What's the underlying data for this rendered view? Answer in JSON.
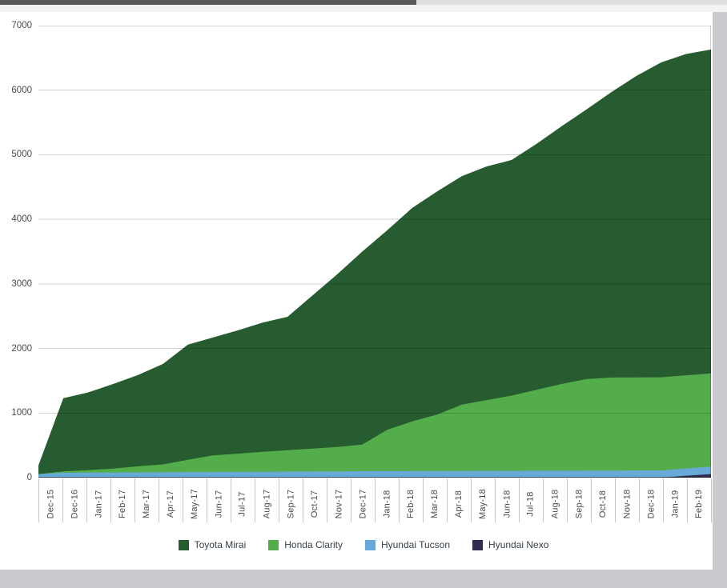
{
  "page": {
    "background": "#ffffff",
    "chrome": {
      "top_edge_dark": "#5a5a5a",
      "top_edge_light": "#e0e0e0",
      "top_band": "#f3f3f3",
      "side_strip": "#c9cbce"
    }
  },
  "chart_data": {
    "type": "area",
    "stacked": true,
    "title": "",
    "xlabel": "",
    "ylabel": "",
    "grid": true,
    "categories": [
      "Dec-15",
      "Dec-16",
      "Jan-17",
      "Feb-17",
      "Mar-17",
      "Apr-17",
      "May-17",
      "Jun-17",
      "Jul-17",
      "Aug-17",
      "Sep-17",
      "Oct-17",
      "Nov-17",
      "Dec-17",
      "Jan-18",
      "Feb-18",
      "Mar-18",
      "Apr-18",
      "May-18",
      "Jun-18",
      "Jul-18",
      "Aug-18",
      "Sep-18",
      "Oct-18",
      "Nov-18",
      "Dec-18",
      "Jan-19",
      "Feb-19"
    ],
    "series": [
      {
        "name": "Toyota Mirai",
        "color": "#265c30",
        "values": [
          135,
          1135,
          1205,
          1310,
          1415,
          1555,
          1785,
          1825,
          1910,
          2000,
          2065,
          2370,
          2675,
          2990,
          3090,
          3305,
          3455,
          3540,
          3620,
          3650,
          3810,
          3990,
          4175,
          4420,
          4668,
          4876,
          4975,
          5017
        ]
      },
      {
        "name": "Honda Clarity",
        "color": "#54ad4b",
        "values": [
          0,
          20,
          38,
          61,
          94,
          122,
          190,
          258,
          281,
          309,
          332,
          355,
          378,
          411,
          640,
          769,
          873,
          1027,
          1096,
          1165,
          1254,
          1343,
          1417,
          1441,
          1442,
          1443,
          1443,
          1445
        ]
      },
      {
        "name": "Hyundai Tucson",
        "color": "#68a9d8",
        "values": [
          55,
          75,
          77,
          79,
          81,
          83,
          85,
          87,
          89,
          91,
          93,
          95,
          97,
          99,
          100,
          101,
          102,
          103,
          104,
          105,
          106,
          107,
          108,
          109,
          110,
          111,
          112,
          113
        ]
      },
      {
        "name": "Hyundai Nexo",
        "color": "#312d50",
        "values": [
          0,
          0,
          0,
          0,
          0,
          0,
          0,
          0,
          0,
          0,
          0,
          0,
          0,
          0,
          0,
          0,
          0,
          0,
          0,
          0,
          0,
          0,
          0,
          0,
          0,
          0,
          30,
          55
        ]
      }
    ],
    "stack_order_bottom_to_top": [
      "Hyundai Nexo",
      "Hyundai Tucson",
      "Honda Clarity",
      "Toyota Mirai"
    ],
    "y_axis": {
      "min": 0,
      "max": 7000,
      "step": 1000,
      "ticks": [
        "0",
        "1000",
        "2000",
        "3000",
        "4000",
        "5000",
        "6000",
        "7000"
      ]
    },
    "legend": {
      "position": "bottom",
      "items": [
        "Toyota Mirai",
        "Honda Clarity",
        "Hyundai Tucson",
        "Hyundai Nexo"
      ]
    },
    "style": {
      "gridline_color": "rgba(0,0,0,0.18)",
      "top_line_color": "rgba(0,0,0,0.32)",
      "baseline_color": "rgba(0,0,0,0.62)",
      "right_border_color": "rgba(0,0,0,0.20)",
      "tick_color": "#c4c4c4",
      "axis_label_color": "#4a4a4a",
      "legend_text_color": "#37404a"
    }
  }
}
